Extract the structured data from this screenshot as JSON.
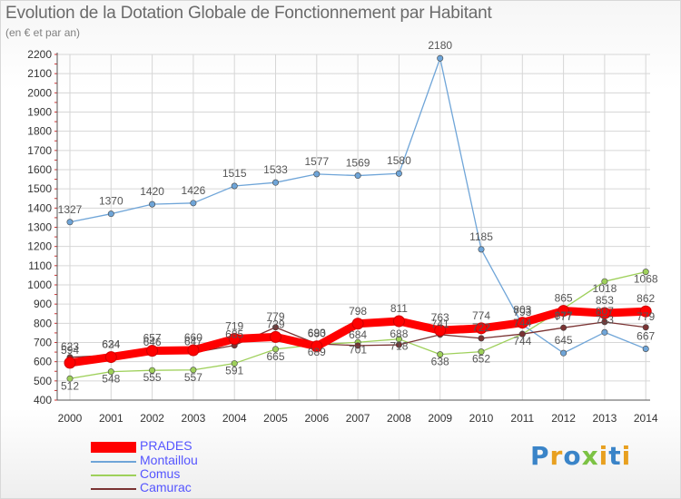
{
  "title": "Evolution de la Dotation Globale de Fonctionnement par Habitant",
  "subtitle": "(en € et par an)",
  "colors": {
    "PRADES": "#ff0000",
    "Montaillou": "#6fa5d8",
    "Comus": "#9ed05a",
    "Camurac": "#7a3333",
    "grid": "#d6d6d6",
    "axis_text": "#333333",
    "value_text": "#555555"
  },
  "chart_data": {
    "type": "line",
    "categories": [
      "2000",
      "2001",
      "2002",
      "2003",
      "2004",
      "2005",
      "2006",
      "2007",
      "2008",
      "2009",
      "2010",
      "2011",
      "2012",
      "2013",
      "2014"
    ],
    "ylim": [
      400,
      2200
    ],
    "yticks": [
      400,
      500,
      600,
      700,
      800,
      900,
      1000,
      1100,
      1200,
      1300,
      1400,
      1500,
      1600,
      1700,
      1800,
      1900,
      2000,
      2100,
      2200
    ],
    "grid": true,
    "legend_position": "bottom-left",
    "series": [
      {
        "name": "PRADES",
        "values": [
          594,
          624,
          657,
          660,
          719,
          729,
          680,
          798,
          811,
          763,
          774,
          803,
          865,
          853,
          862
        ]
      },
      {
        "name": "Montaillou",
        "values": [
          1327,
          1370,
          1420,
          1426,
          1515,
          1533,
          1577,
          1569,
          1580,
          2180,
          1185,
          793,
          645,
          753,
          667
        ]
      },
      {
        "name": "Comus",
        "values": [
          512,
          548,
          555,
          557,
          591,
          665,
          689,
          701,
          718,
          638,
          652,
          744,
          877,
          1018,
          1068
        ]
      },
      {
        "name": "Camurac",
        "values": [
          623,
          634,
          646,
          647,
          685,
          779,
          693,
          684,
          688,
          741,
          722,
          744,
          777,
          807,
          779
        ]
      }
    ]
  },
  "logo": {
    "letters": [
      "P",
      "r",
      "o",
      "x",
      "i",
      "t",
      "i"
    ],
    "colors": [
      "#3a84c8",
      "#e8a020",
      "#3a84c8",
      "#7cc244",
      "#e8a020",
      "#3a84c8",
      "#e8a020"
    ]
  }
}
